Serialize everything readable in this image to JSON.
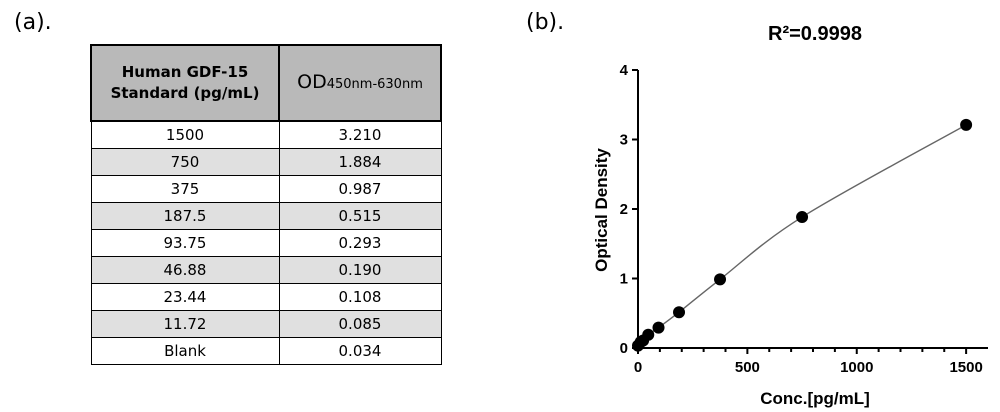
{
  "panels": {
    "a_label": "(a).",
    "b_label": "(b)."
  },
  "table": {
    "header_col1": "Human GDF-15 Standard (pg/mL)",
    "header_col2_main": "OD",
    "header_col2_sub": "450nm-630nm",
    "rows": [
      [
        "1500",
        "3.210"
      ],
      [
        "750",
        "1.884"
      ],
      [
        "375",
        "0.987"
      ],
      [
        "187.5",
        "0.515"
      ],
      [
        "93.75",
        "0.293"
      ],
      [
        "46.88",
        "0.190"
      ],
      [
        "23.44",
        "0.108"
      ],
      [
        "11.72",
        "0.085"
      ],
      [
        "Blank",
        "0.034"
      ]
    ]
  },
  "chart_data": {
    "type": "scatter",
    "title": "R²=0.9998",
    "xlabel": "Conc.[pg/mL]",
    "ylabel": "Optical Density",
    "xlim": [
      0,
      1600
    ],
    "ylim": [
      0,
      4
    ],
    "xticks": [
      0,
      500,
      1000,
      1500
    ],
    "yticks": [
      0,
      1,
      2,
      3,
      4
    ],
    "x": [
      0,
      11.72,
      23.44,
      46.88,
      93.75,
      187.5,
      375,
      750,
      1500
    ],
    "y": [
      0.034,
      0.085,
      0.108,
      0.19,
      0.293,
      0.515,
      0.987,
      1.884,
      3.21
    ],
    "fit_curve": true,
    "grid": false
  }
}
